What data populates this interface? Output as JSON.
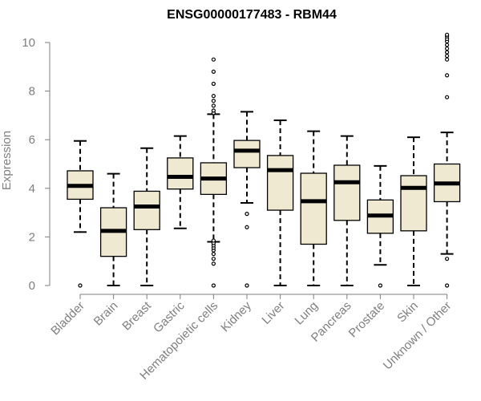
{
  "chart_data": {
    "type": "boxplot",
    "title": "ENSG00000177483 - RBM44",
    "xlabel": "",
    "ylabel": "Expression",
    "ylim": [
      0,
      10
    ],
    "yticks": [
      "0",
      "2",
      "4",
      "6",
      "8",
      "10"
    ],
    "grid": false,
    "colors": {
      "box_fill": "#efe9d1",
      "stroke": "#000000",
      "axis": "#7f7f7f"
    },
    "categories": [
      "Bladder",
      "Brain",
      "Breast",
      "Gastric",
      "Hematopoietic cells",
      "Kidney",
      "Liver",
      "Lung",
      "Pancreas",
      "Prostate",
      "Skin",
      "Unknown / Other"
    ],
    "boxes": [
      {
        "q1": 3.55,
        "median": 4.1,
        "q3": 4.72,
        "whisker_low": 2.2,
        "whisker_high": 5.95,
        "outliers": [
          0
        ]
      },
      {
        "q1": 1.2,
        "median": 2.25,
        "q3": 3.2,
        "whisker_low": 0,
        "whisker_high": 4.6,
        "outliers": []
      },
      {
        "q1": 2.3,
        "median": 3.25,
        "q3": 3.88,
        "whisker_low": 0,
        "whisker_high": 5.65,
        "outliers": []
      },
      {
        "q1": 3.97,
        "median": 4.47,
        "q3": 5.25,
        "whisker_low": 2.35,
        "whisker_high": 6.15,
        "outliers": []
      },
      {
        "q1": 3.75,
        "median": 4.4,
        "q3": 5.05,
        "whisker_low": 1.8,
        "whisker_high": 7.05,
        "outliers": [
          0,
          0.9,
          1.1,
          1.3,
          1.45,
          1.55,
          1.65,
          1.75,
          1.85,
          7.1,
          7.2,
          7.4,
          7.6,
          7.8,
          8.3,
          8.8,
          9.3
        ]
      },
      {
        "q1": 4.85,
        "median": 5.55,
        "q3": 5.97,
        "whisker_low": 3.4,
        "whisker_high": 7.15,
        "outliers": [
          0,
          2.4,
          2.95
        ]
      },
      {
        "q1": 3.1,
        "median": 4.75,
        "q3": 5.35,
        "whisker_low": 0,
        "whisker_high": 6.8,
        "outliers": []
      },
      {
        "q1": 1.7,
        "median": 3.47,
        "q3": 4.62,
        "whisker_low": 0,
        "whisker_high": 6.35,
        "outliers": []
      },
      {
        "q1": 2.68,
        "median": 4.25,
        "q3": 4.95,
        "whisker_low": 0,
        "whisker_high": 6.15,
        "outliers": []
      },
      {
        "q1": 2.15,
        "median": 2.88,
        "q3": 3.52,
        "whisker_low": 0.85,
        "whisker_high": 4.92,
        "outliers": [
          0
        ]
      },
      {
        "q1": 2.25,
        "median": 4.02,
        "q3": 4.52,
        "whisker_low": 0,
        "whisker_high": 6.1,
        "outliers": []
      },
      {
        "q1": 3.45,
        "median": 4.2,
        "q3": 5.0,
        "whisker_low": 1.3,
        "whisker_high": 6.3,
        "outliers": [
          0,
          1.1,
          7.75,
          8.65,
          9.3,
          9.45,
          9.6,
          9.75,
          9.9,
          10.05,
          10.15,
          10.25,
          10.32
        ]
      }
    ]
  }
}
